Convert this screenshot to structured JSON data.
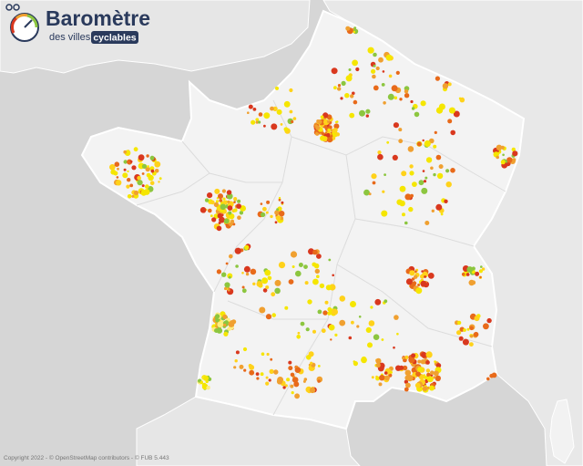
{
  "logo": {
    "title": "Baromètre",
    "subtitle": "des villes",
    "badge": "cyclables"
  },
  "attribution": "Copyright 2022 - © OpenStreetMap contributors - © FUB 5.443"
}
